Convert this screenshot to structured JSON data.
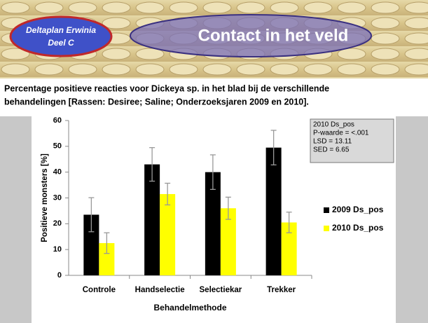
{
  "header": {
    "badge": [
      "Deltaplan Erwinia",
      "Deel C"
    ],
    "title": "Contact in het veld"
  },
  "caption": [
    "Percentage positieve reacties voor Dickeya sp. in het blad bij de verschillende",
    "behandelingen [Rassen: Desiree; Saline; Onderzoeksjaren 2009 en 2010]."
  ],
  "chart_data": {
    "type": "bar",
    "categories": [
      "Controle",
      "Handselectie",
      "Selectiekar",
      "Trekker"
    ],
    "series": [
      {
        "name": "2009 Ds_pos",
        "color": "#000000",
        "values": [
          23.5,
          43,
          40,
          49.5
        ],
        "errors": [
          6.6,
          6.5,
          6.7,
          6.7
        ]
      },
      {
        "name": "2010 Ds_pos",
        "color": "#ffff00",
        "values": [
          12.5,
          31.5,
          26,
          20.5
        ],
        "errors": [
          4,
          4.2,
          4.3,
          4
        ]
      }
    ],
    "ylim": [
      0,
      60
    ],
    "yticks": [
      0,
      10,
      20,
      30,
      40,
      50,
      60
    ],
    "xlabel": "Behandelmethode",
    "ylabel": "Positieve monsters [%]",
    "annotation": [
      "2010 Ds_pos",
      "P-waarde = <.001",
      "LSD = 13.11",
      "SED = 6.65"
    ],
    "legend": "right",
    "grid": false
  }
}
